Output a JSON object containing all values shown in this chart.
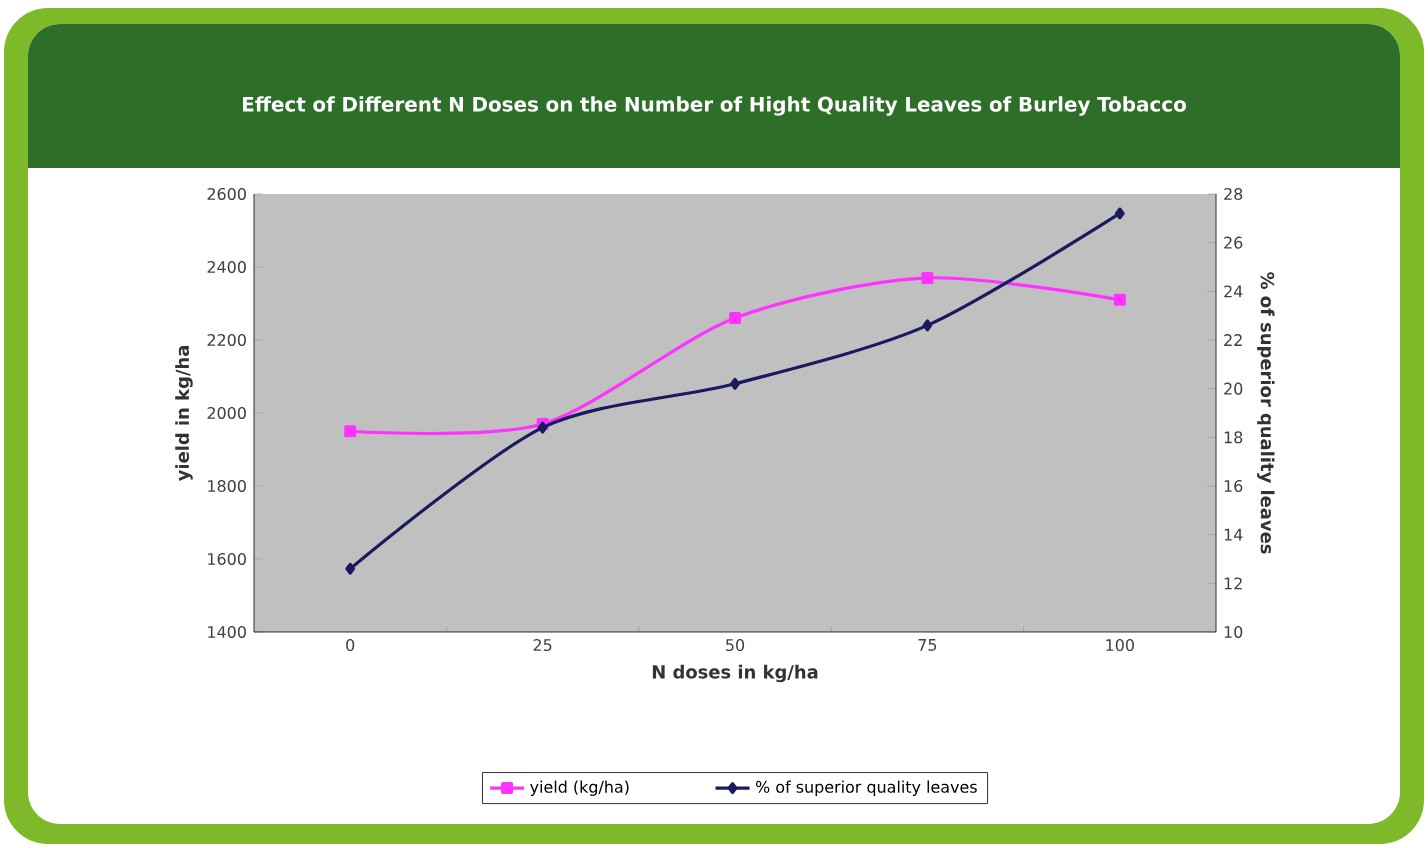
{
  "chart_data": {
    "type": "line",
    "title": "Effect of Different N Doses on the Number of Hight Quality Leaves of Burley Tobacco",
    "xlabel": "N doses in kg/ha",
    "ylabel": "yield in kg/ha",
    "y2label": "% of superior quality leaves",
    "categories": [
      "0",
      "25",
      "50",
      "75",
      "100"
    ],
    "series": [
      {
        "name": "yield (kg/ha)",
        "color": "#ff33ff",
        "marker": "square",
        "values": [
          1950,
          1970,
          2260,
          2370,
          2310
        ]
      },
      {
        "name": "% of superior quality leaves",
        "color": "#1a1a5e",
        "marker": "diamond",
        "axis": "y2",
        "values": [
          12.6,
          18.4,
          20.2,
          22.6,
          27.2
        ]
      }
    ],
    "ylim": [
      1400,
      2600
    ],
    "yticks": [
      1400,
      1600,
      1800,
      2000,
      2200,
      2400,
      2600
    ],
    "y2lim": [
      10,
      28
    ],
    "y2ticks": [
      10,
      12,
      14,
      16,
      18,
      20,
      22,
      24,
      26,
      28
    ],
    "legend": "bottom",
    "line_style": "solid"
  }
}
